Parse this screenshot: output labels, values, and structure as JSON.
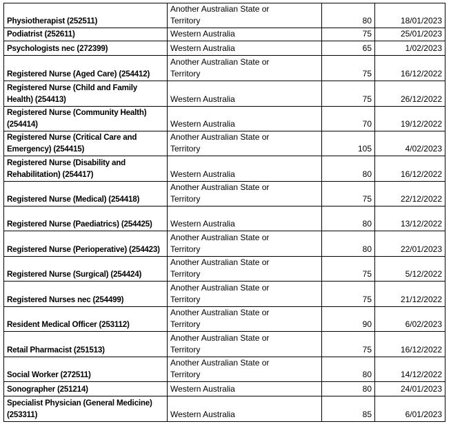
{
  "table": {
    "rows": [
      [
        "Physiotherapist (252511)",
        "Another Australian State or Territory",
        80,
        "18/01/2023"
      ],
      [
        "Podiatrist (252611)",
        "Western Australia",
        75,
        "25/01/2023"
      ],
      [
        "Psychologists nec (272399)",
        "Western Australia",
        65,
        "1/02/2023"
      ],
      [
        "Registered Nurse (Aged Care) (254412)",
        "Another Australian State or Territory",
        75,
        "16/12/2022"
      ],
      [
        "Registered Nurse (Child and Family Health) (254413)",
        "Western Australia",
        75,
        "26/12/2022"
      ],
      [
        "Registered Nurse (Community Health) (254414)",
        "Western Australia",
        70,
        "19/12/2022"
      ],
      [
        "Registered Nurse (Critical Care and Emergency) (254415)",
        "Another Australian State or Territory",
        105,
        "4/02/2023"
      ],
      [
        "Registered Nurse (Disability and Rehabilitation) (254417)",
        "Western Australia",
        80,
        "16/12/2022"
      ],
      [
        "Registered Nurse (Medical) (254418)",
        "Another Australian State or Territory",
        75,
        "22/12/2022"
      ],
      [
        "Registered Nurse (Paediatrics) (254425)",
        "Western Australia",
        80,
        "13/12/2022"
      ],
      [
        "Registered Nurse (Perioperative) (254423)",
        "Another Australian State or Territory",
        80,
        "22/01/2023"
      ],
      [
        "Registered Nurse (Surgical) (254424)",
        "Another Australian State or Territory",
        75,
        "5/12/2022"
      ],
      [
        "Registered Nurses nec (254499)",
        "Another Australian State or Territory",
        75,
        "21/12/2022"
      ],
      [
        "Resident Medical Officer (253112)",
        "Another Australian State or Territory",
        90,
        "6/02/2023"
      ],
      [
        "Retail Pharmacist (251513)",
        "Another Australian State or Territory",
        75,
        "16/12/2022"
      ],
      [
        "Social Worker (272511)",
        "Another Australian State or Territory",
        80,
        "14/12/2022"
      ],
      [
        "Sonographer (251214)",
        "Western Australia",
        80,
        "24/01/2023"
      ],
      [
        "Specialist Physician (General Medicine) (253311)",
        "Western Australia",
        85,
        "6/01/2023"
      ]
    ]
  }
}
